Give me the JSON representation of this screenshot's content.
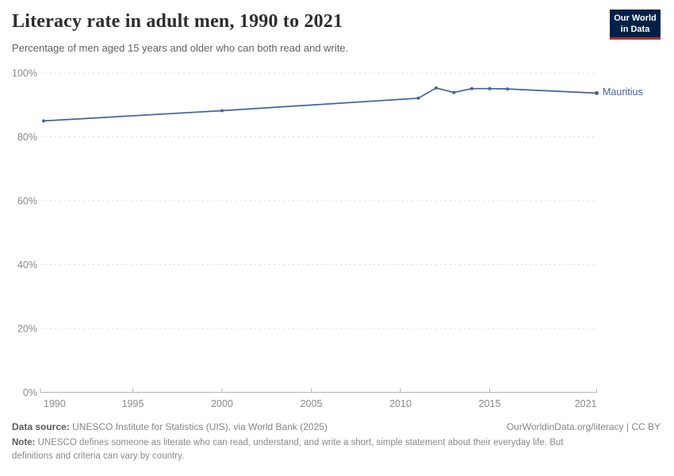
{
  "header": {
    "title": "Literacy rate in adult men, 1990 to 2021",
    "subtitle": "Percentage of men aged 15 years and older who can both read and write.",
    "logo": {
      "line1": "Our World",
      "line2": "in Data",
      "bg_color": "#002147",
      "accent_color": "#b5322b"
    }
  },
  "chart_data": {
    "type": "line",
    "title": "Literacy rate in adult men, 1990 to 2021",
    "xlabel": "",
    "ylabel": "",
    "xlim": [
      1990,
      2021
    ],
    "ylim": [
      0,
      100
    ],
    "grid": "horizontal-dashed",
    "legend_position": "right-of-line-end",
    "entity_label": "Mauritius",
    "xticks": [
      {
        "value": 1990,
        "label": "1990"
      },
      {
        "value": 1995,
        "label": "1995"
      },
      {
        "value": 2000,
        "label": "2000"
      },
      {
        "value": 2005,
        "label": "2005"
      },
      {
        "value": 2010,
        "label": "2010"
      },
      {
        "value": 2015,
        "label": "2015"
      },
      {
        "value": 2021,
        "label": "2021"
      }
    ],
    "yticks": [
      {
        "value": 0,
        "label": "0%"
      },
      {
        "value": 20,
        "label": "20%"
      },
      {
        "value": 40,
        "label": "40%"
      },
      {
        "value": 60,
        "label": "60%"
      },
      {
        "value": 80,
        "label": "80%"
      },
      {
        "value": 100,
        "label": "100%"
      }
    ],
    "series": [
      {
        "name": "Mauritius",
        "color": "#41629f",
        "points": [
          {
            "year": 1990,
            "value": 85.0
          },
          {
            "year": 2000,
            "value": 88.2
          },
          {
            "year": 2011,
            "value": 92.1
          },
          {
            "year": 2012,
            "value": 95.3
          },
          {
            "year": 2013,
            "value": 93.9
          },
          {
            "year": 2014,
            "value": 95.1
          },
          {
            "year": 2015,
            "value": 95.1
          },
          {
            "year": 2016,
            "value": 95.0
          },
          {
            "year": 2021,
            "value": 93.7
          }
        ]
      }
    ]
  },
  "footer": {
    "datasource_label": "Data source:",
    "datasource_value": "UNESCO Institute for Statistics (UIS), via World Bank (2025)",
    "link": "OurWorldinData.org/literacy | CC BY",
    "note_label": "Note:",
    "note_value": "UNESCO defines someone as literate who can read, understand, and write a short, simple statement about their everyday life. But definitions and criteria can vary by country."
  }
}
